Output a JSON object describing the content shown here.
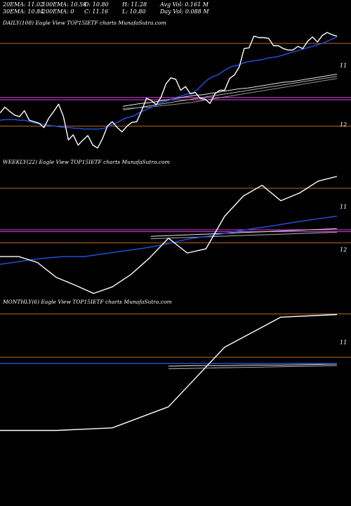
{
  "stats": {
    "ema20": "20EMA: 11.02",
    "ema100": "100EMA: 10.58",
    "open": "O: 10.80",
    "high": "H: 11.28",
    "avgvol": "Avg Vol: 0.161  M",
    "ema30": "30EMA: 10.84",
    "ema200": "200EMA: 0",
    "close": "C: 11.16",
    "low": "L: 10.80",
    "dayvol": "Day Vol: 0.088  M"
  },
  "colors": {
    "price": "#ffffff",
    "ema_blue": "#1f4fd8",
    "ema_slow": "#e6e6e6",
    "magenta": "#e040e0",
    "orange": "#b86a1e",
    "background": "#000000"
  },
  "chart_data": [
    {
      "type": "line",
      "title": "DAILY(108) Eagle  View  TOP15IETF charts MunafaSutra.com",
      "y_ticks": [
        "11",
        "12"
      ],
      "y_axis": "inverted",
      "series": [
        {
          "role": "price",
          "color": "#ffffff",
          "values": [
            11.88,
            11.8,
            11.86,
            11.91,
            11.93,
            11.85,
            11.98,
            12.0,
            12.02,
            12.08,
            11.95,
            11.86,
            11.76,
            11.93,
            12.25,
            12.18,
            12.32,
            12.25,
            12.19,
            12.32,
            12.36,
            12.23,
            12.06,
            12.0,
            12.08,
            12.14,
            12.06,
            12.01,
            12.0,
            11.85,
            11.68,
            11.71,
            11.77,
            11.66,
            11.48,
            11.4,
            11.42,
            11.57,
            11.52,
            11.62,
            11.6,
            11.68,
            11.69,
            11.75,
            11.62,
            11.57,
            11.57,
            11.41,
            11.36,
            11.25,
            11.0,
            10.99,
            10.83,
            10.85,
            10.85,
            10.86,
            10.96,
            10.96,
            11.0,
            11.02,
            11.02,
            10.97,
            11.0,
            10.9,
            10.84,
            10.91,
            10.82,
            10.78,
            10.81,
            10.83
          ]
        },
        {
          "role": "ema-fast",
          "color": "#1f4fd8",
          "values": [
            11.98,
            11.97,
            11.97,
            11.97,
            11.98,
            11.98,
            12.0,
            12.02,
            12.03,
            12.04,
            12.05,
            12.06,
            12.07,
            12.08,
            12.08,
            12.09,
            12.09,
            12.1,
            12.1,
            12.1,
            12.1,
            12.09,
            12.06,
            12.03,
            12.0,
            11.96,
            11.94,
            11.92,
            11.88,
            11.85,
            11.82,
            11.79,
            11.75,
            11.73,
            11.71,
            11.68,
            11.66,
            11.64,
            11.62,
            11.6,
            11.55,
            11.48,
            11.42,
            11.38,
            11.36,
            11.31,
            11.27,
            11.24,
            11.23,
            11.2,
            11.18,
            11.17,
            11.16,
            11.15,
            11.13,
            11.12,
            11.11,
            11.09,
            11.07,
            11.05,
            11.03,
            11.01,
            10.99,
            10.97,
            10.95,
            10.93,
            10.9,
            10.87,
            10.84
          ]
        },
        {
          "role": "ema-slow-1",
          "color": "#e6e6e6",
          "values": [
            11.79,
            11.77,
            11.75,
            11.74,
            11.72,
            11.7,
            11.68,
            11.66,
            11.64,
            11.63,
            11.61,
            11.59,
            11.57,
            11.55,
            11.54,
            11.52,
            11.5,
            11.48,
            11.46,
            11.45,
            11.43,
            11.41,
            11.39,
            11.37,
            11.35
          ]
        },
        {
          "role": "ema-slow-2",
          "color": "#b0b0b0",
          "values": [
            11.84,
            11.82,
            11.8,
            11.78,
            11.76,
            11.74,
            11.72,
            11.7,
            11.68,
            11.66,
            11.64,
            11.62,
            11.6,
            11.58,
            11.56,
            11.54,
            11.52,
            11.5,
            11.48,
            11.46,
            11.44,
            11.42,
            11.4,
            11.38
          ]
        },
        {
          "role": "ema-slow-3",
          "color": "#909090",
          "values": [
            11.82,
            11.81,
            11.8,
            11.78,
            11.76,
            11.74,
            11.71,
            11.68,
            11.65,
            11.62,
            11.59,
            11.56,
            11.53,
            11.5,
            11.47,
            11.44,
            11.41
          ]
        }
      ],
      "hlines": [
        {
          "value": 10.93,
          "color": "#b86a1e"
        },
        {
          "value": 11.67,
          "color": "#e040e0"
        },
        {
          "value": 11.7,
          "color": "#e040e0"
        },
        {
          "value": 12.06,
          "color": "#b86a1e"
        }
      ]
    },
    {
      "type": "line",
      "title": "WEEKLY(22) Eagle  View  TOP15IETF charts MunafaSutra.com",
      "y_ticks": [
        "11",
        "12"
      ],
      "y_axis": "inverted",
      "series": [
        {
          "role": "price",
          "color": "#ffffff",
          "values": [
            12.2,
            12.2,
            12.3,
            12.55,
            12.68,
            12.82,
            12.71,
            12.5,
            12.22,
            11.89,
            12.14,
            12.07,
            11.52,
            11.18,
            11.0,
            11.26,
            11.13,
            10.93,
            10.85
          ]
        },
        {
          "role": "ema-fast",
          "color": "#1f4fd8",
          "values": [
            12.33,
            12.28,
            12.23,
            12.2,
            12.2,
            12.15,
            12.1,
            12.05,
            11.98,
            11.9,
            11.85,
            11.79,
            11.73,
            11.68,
            11.62,
            11.57,
            11.52
          ]
        },
        {
          "role": "ema-slow-1",
          "color": "#e6e6e6",
          "values": [
            11.86,
            11.85,
            11.84,
            11.83,
            11.82,
            11.81,
            11.8,
            11.79,
            11.78,
            11.77,
            11.76,
            11.75,
            11.74,
            11.73
          ]
        },
        {
          "role": "ema-slow-2",
          "color": "#b0b0b0",
          "values": [
            11.9,
            11.89,
            11.88,
            11.87,
            11.86,
            11.85,
            11.84,
            11.83,
            11.82,
            11.81,
            11.8,
            11.79
          ]
        }
      ],
      "hlines": [
        {
          "value": 11.05,
          "color": "#b86a1e"
        },
        {
          "value": 11.75,
          "color": "#e040e0"
        },
        {
          "value": 11.78,
          "color": "#e040e0"
        },
        {
          "value": 11.97,
          "color": "#b86a1e"
        }
      ]
    },
    {
      "type": "line",
      "title": "MONTHLY(6) Eagle  View  TOP15IETF charts MunafaSutra.com",
      "y_ticks": [
        "11"
      ],
      "y_axis": "inverted",
      "series": [
        {
          "role": "price",
          "color": "#ffffff",
          "values": [
            12.55,
            12.55,
            12.5,
            12.1,
            10.97,
            10.4,
            10.35
          ]
        },
        {
          "role": "ema-fast",
          "color": "#1f4fd8",
          "values": [
            11.28,
            11.28,
            11.28,
            11.28,
            11.28,
            11.28,
            11.28
          ]
        },
        {
          "role": "ema-slow-1",
          "color": "#e6e6e6",
          "values": [
            11.33,
            11.32,
            11.32,
            11.31,
            11.31,
            11.3,
            11.29
          ]
        },
        {
          "role": "ema-slow-2",
          "color": "#b0b0b0",
          "values": [
            11.38,
            11.37,
            11.36,
            11.35,
            11.34,
            11.33,
            11.32
          ]
        }
      ],
      "hlines": [
        {
          "value": 10.34,
          "color": "#b86a1e"
        },
        {
          "value": 11.16,
          "color": "#b86a1e"
        }
      ]
    }
  ]
}
